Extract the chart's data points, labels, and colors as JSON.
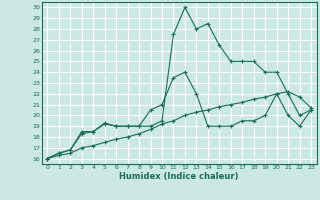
{
  "xlabel": "Humidex (Indice chaleur)",
  "bg_color": "#cce8e4",
  "grid_color": "#ffffff",
  "line_color": "#1a6b5a",
  "xlim": [
    -0.5,
    23.5
  ],
  "ylim": [
    15.5,
    30.5
  ],
  "xticks": [
    0,
    1,
    2,
    3,
    4,
    5,
    6,
    7,
    8,
    9,
    10,
    11,
    12,
    13,
    14,
    15,
    16,
    17,
    18,
    19,
    20,
    21,
    22,
    23
  ],
  "yticks": [
    16,
    17,
    18,
    19,
    20,
    21,
    22,
    23,
    24,
    25,
    26,
    27,
    28,
    29,
    30
  ],
  "line1_x": [
    0,
    1,
    2,
    3,
    4,
    5,
    6,
    7,
    8,
    9,
    10,
    11,
    12,
    13,
    14,
    15,
    16,
    17,
    18,
    19,
    20,
    21,
    22,
    23
  ],
  "line1_y": [
    16,
    16.5,
    16.8,
    18.5,
    18.5,
    19.3,
    19,
    19,
    19,
    19,
    19.5,
    27.5,
    30,
    28,
    28.5,
    26.5,
    25,
    25,
    25,
    24,
    24,
    22,
    20,
    20.5
  ],
  "line2_x": [
    0,
    1,
    2,
    3,
    4,
    5,
    6,
    7,
    8,
    9,
    10,
    11,
    12,
    13,
    14,
    15,
    16,
    17,
    18,
    19,
    20,
    21,
    22,
    23
  ],
  "line2_y": [
    16,
    16.5,
    16.8,
    18.3,
    18.5,
    19.2,
    19,
    19,
    19,
    20.5,
    21,
    23.5,
    24,
    22,
    19,
    19,
    19,
    19.5,
    19.5,
    20,
    22,
    20,
    19,
    20.5
  ],
  "line3_x": [
    0,
    1,
    2,
    3,
    4,
    5,
    6,
    7,
    8,
    9,
    10,
    11,
    12,
    13,
    14,
    15,
    16,
    17,
    18,
    19,
    20,
    21,
    22,
    23
  ],
  "line3_y": [
    16,
    16.3,
    16.5,
    17,
    17.2,
    17.5,
    17.8,
    18,
    18.3,
    18.7,
    19.2,
    19.5,
    20,
    20.3,
    20.5,
    20.8,
    21,
    21.2,
    21.5,
    21.7,
    22,
    22.2,
    21.7,
    20.7
  ]
}
